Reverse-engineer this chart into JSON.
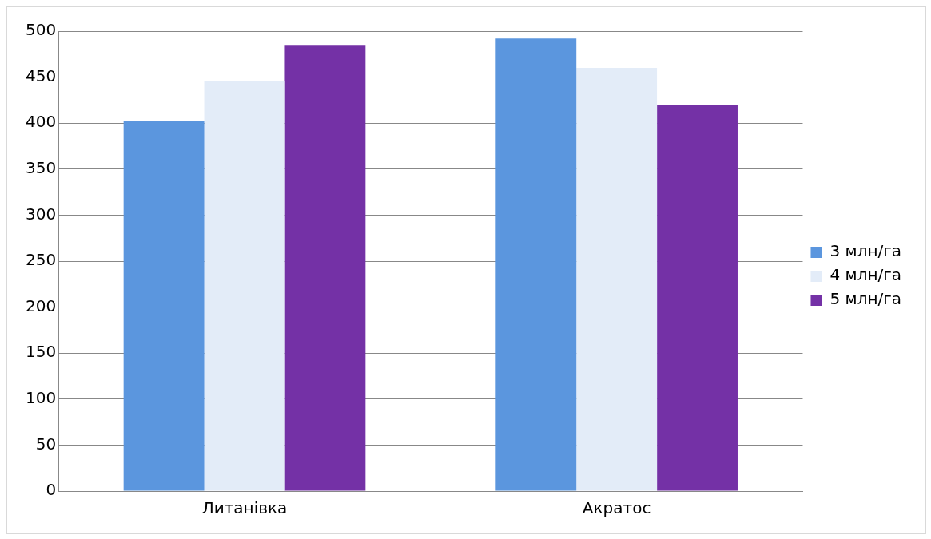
{
  "chart_data": {
    "type": "bar",
    "categories": [
      "Литанівка",
      "Акратос"
    ],
    "series": [
      {
        "name": "3 млн/га",
        "color": "#5b96de",
        "values": [
          402,
          492
        ]
      },
      {
        "name": "4 млн/га",
        "color": "#e3ecf8",
        "values": [
          446,
          460
        ]
      },
      {
        "name": "5 млн/га",
        "color": "#7431a6",
        "values": [
          485,
          420
        ]
      }
    ],
    "ylim": [
      0,
      500
    ],
    "yticks": [
      0,
      50,
      100,
      150,
      200,
      250,
      300,
      350,
      400,
      450,
      500
    ],
    "grid": "y",
    "legend": "right"
  }
}
